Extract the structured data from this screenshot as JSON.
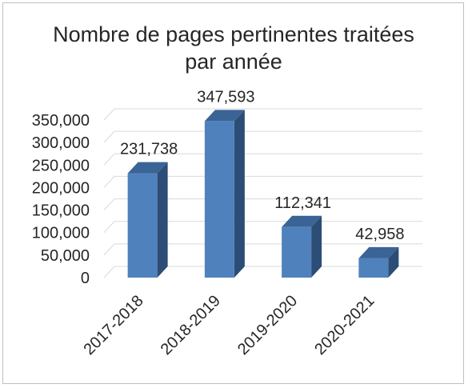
{
  "chart_data": {
    "type": "bar",
    "title_lines": [
      "Nombre de pages pertinentes traitées",
      "par année"
    ],
    "categories": [
      "2017-2018",
      "2018-2019",
      "2019-2020",
      "2020-2021"
    ],
    "values": [
      231738,
      347593,
      112341,
      42958
    ],
    "data_labels": [
      "231,738",
      "347,593",
      "112,341",
      "42,958"
    ],
    "y_ticks": [
      "0",
      "50,000",
      "100,000",
      "150,000",
      "200,000",
      "250,000",
      "300,000",
      "350,000"
    ],
    "ylim": [
      0,
      350000
    ],
    "grid": true,
    "legend": "none",
    "style": "3d-column",
    "colors": {
      "bar_front": "#4f81bd",
      "bar_side": "#2c4d75",
      "bar_top": "#3a6496",
      "grid": "#d9d9d9",
      "text": "#262626"
    }
  }
}
